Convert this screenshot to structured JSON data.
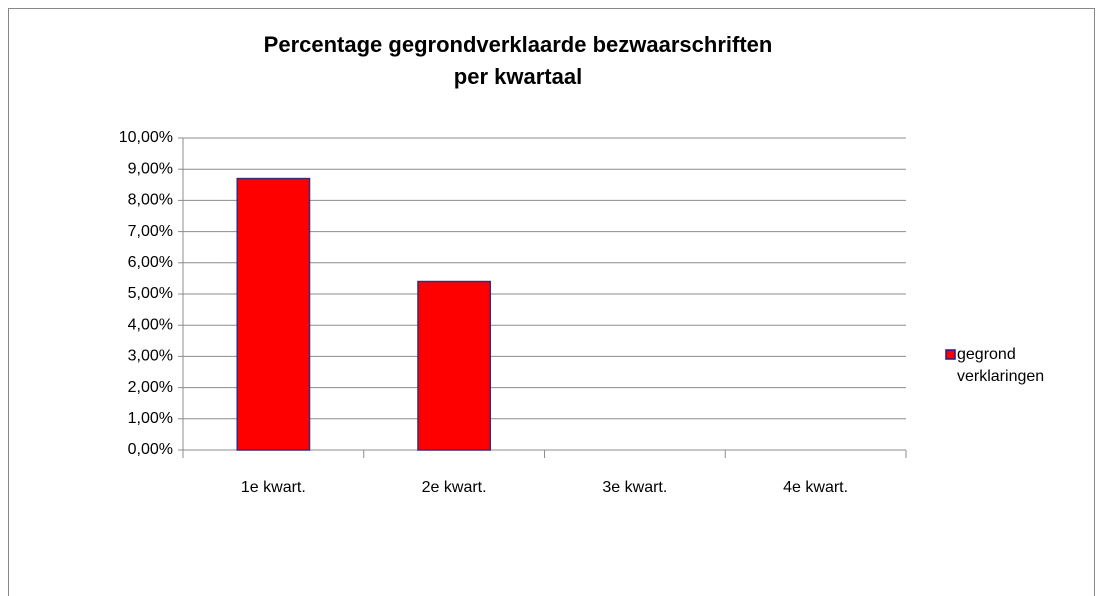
{
  "chart_data": {
    "type": "bar",
    "title": [
      "Percentage gegrondverklaarde bezwaarschriften",
      "per kwartaal"
    ],
    "categories": [
      "1e kwart.",
      "2e kwart.",
      "3e kwart.",
      "4e kwart."
    ],
    "series": [
      {
        "name": "gegrond verklaringen",
        "color": "#ff0000",
        "values": [
          8.7,
          5.4,
          null,
          null
        ]
      }
    ],
    "ylim": [
      0,
      10
    ],
    "yticks": [
      {
        "value": 0,
        "label": "0,00%"
      },
      {
        "value": 1,
        "label": "1,00%"
      },
      {
        "value": 2,
        "label": "2,00%"
      },
      {
        "value": 3,
        "label": "3,00%"
      },
      {
        "value": 4,
        "label": "4,00%"
      },
      {
        "value": 5,
        "label": "5,00%"
      },
      {
        "value": 6,
        "label": "6,00%"
      },
      {
        "value": 7,
        "label": "7,00%"
      },
      {
        "value": 8,
        "label": "8,00%"
      },
      {
        "value": 9,
        "label": "9,00%"
      },
      {
        "value": 10,
        "label": "10,00%"
      }
    ],
    "grid": true,
    "legend": "right"
  }
}
